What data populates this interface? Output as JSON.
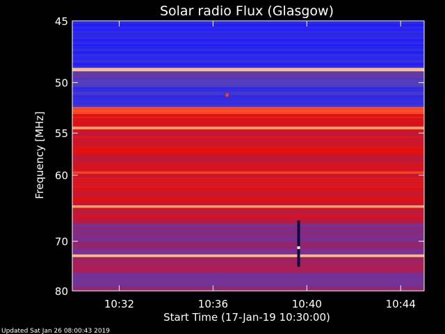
{
  "chart_data": {
    "type": "heatmap",
    "title": "Solar radio Flux (Glasgow)",
    "xlabel": "Start Time (17-Jan-19 10:30:00)",
    "ylabel": "Frequency [MHz]",
    "x_ticks": [
      "10:32",
      "10:36",
      "10:40",
      "10:44"
    ],
    "x_tick_minutes": [
      2,
      6,
      10,
      14
    ],
    "xlim_minutes": [
      0,
      15
    ],
    "y_ticks": [
      45,
      50,
      55,
      60,
      70,
      80
    ],
    "ylim_mhz": [
      45,
      80
    ],
    "y_scale": "reciprocal",
    "grid": false,
    "colormap": [
      "#1a1aff",
      "#5040c0",
      "#a02060",
      "#e01010",
      "#ff6030",
      "#ffe0a0"
    ],
    "bands": [
      {
        "mhz_from": 45.0,
        "mhz_to": 48.7,
        "level": 0.05
      },
      {
        "mhz_from": 48.7,
        "mhz_to": 49.0,
        "level": 0.98
      },
      {
        "mhz_from": 49.0,
        "mhz_to": 50.3,
        "level": 0.22
      },
      {
        "mhz_from": 50.3,
        "mhz_to": 52.3,
        "level": 0.12
      },
      {
        "mhz_from": 52.3,
        "mhz_to": 53.0,
        "level": 0.72
      },
      {
        "mhz_from": 53.0,
        "mhz_to": 54.3,
        "level": 0.58
      },
      {
        "mhz_from": 54.3,
        "mhz_to": 54.6,
        "level": 0.85
      },
      {
        "mhz_from": 54.6,
        "mhz_to": 59.5,
        "level": 0.55
      },
      {
        "mhz_from": 59.5,
        "mhz_to": 59.8,
        "level": 0.72
      },
      {
        "mhz_from": 59.8,
        "mhz_to": 64.2,
        "level": 0.56
      },
      {
        "mhz_from": 64.2,
        "mhz_to": 64.6,
        "level": 0.88
      },
      {
        "mhz_from": 64.6,
        "mhz_to": 67.0,
        "level": 0.48
      },
      {
        "mhz_from": 67.0,
        "mhz_to": 72.4,
        "level": 0.32
      },
      {
        "mhz_from": 72.4,
        "mhz_to": 72.9,
        "level": 0.9
      },
      {
        "mhz_from": 72.9,
        "mhz_to": 76.0,
        "level": 0.42
      },
      {
        "mhz_from": 76.0,
        "mhz_to": 80.0,
        "level": 0.3
      }
    ],
    "events": [
      {
        "minute": 9.65,
        "mhz_from": 66.5,
        "mhz_to": 74.8,
        "color": "#0a0a40"
      },
      {
        "minute": 9.65,
        "mhz_from": 70.9,
        "mhz_to": 71.4,
        "color": "#fff0c0"
      },
      {
        "minute": 6.6,
        "mhz_from": 51.0,
        "mhz_to": 51.3,
        "color": "#ff4010"
      }
    ]
  },
  "footer": {
    "updated": "Updated Sat Jan 26 08:00:43 2019"
  }
}
